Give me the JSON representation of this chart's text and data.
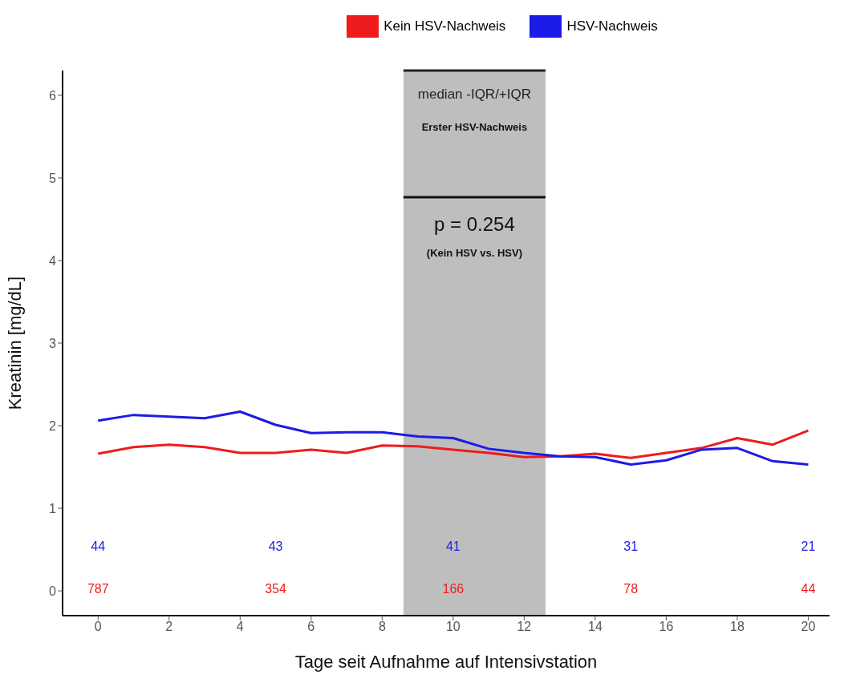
{
  "chart_data": {
    "type": "line",
    "xlabel": "Tage seit Aufnahme auf Intensivstation",
    "ylabel": "Kreatinin [mg/dL]",
    "x": [
      0,
      1,
      2,
      3,
      4,
      5,
      6,
      7,
      8,
      9,
      10,
      11,
      12,
      13,
      14,
      15,
      16,
      17,
      18,
      19,
      20
    ],
    "series": [
      {
        "name": "Kein HSV-Nachweis",
        "color": "#ee1c1c",
        "values": [
          1.66,
          1.74,
          1.77,
          1.74,
          1.67,
          1.67,
          1.71,
          1.67,
          1.76,
          1.75,
          1.71,
          1.67,
          1.62,
          1.63,
          1.66,
          1.61,
          1.67,
          1.73,
          1.85,
          1.77,
          1.94
        ]
      },
      {
        "name": "HSV-Nachweis",
        "color": "#1c1ce6",
        "values": [
          2.06,
          2.13,
          2.11,
          2.09,
          2.17,
          2.01,
          1.91,
          1.92,
          1.92,
          1.87,
          1.85,
          1.72,
          1.67,
          1.63,
          1.62,
          1.53,
          1.58,
          1.71,
          1.73,
          1.57,
          1.53
        ]
      }
    ],
    "xlim": [
      -1,
      20.6
    ],
    "xticks": [
      0,
      2,
      4,
      6,
      8,
      10,
      12,
      14,
      16,
      18,
      20
    ],
    "ylim": [
      -0.3,
      6.3
    ],
    "yticks": [
      0,
      1,
      2,
      3,
      4,
      5,
      6
    ],
    "grid": false,
    "legend": "top",
    "marker": "none",
    "line_style": "solid",
    "bands": [
      {
        "axis": "x",
        "from": 8.6,
        "to": 12.6,
        "label": "median -IQR/+IQR",
        "color": "#bebebe"
      }
    ],
    "annotations": [
      "Erster HSV-Nachweis",
      "p = 0.254",
      "(Kein HSV vs. HSV)",
      "44",
      "43",
      "41",
      "31",
      "21",
      "787",
      "354",
      "166",
      "78",
      "44"
    ]
  }
}
